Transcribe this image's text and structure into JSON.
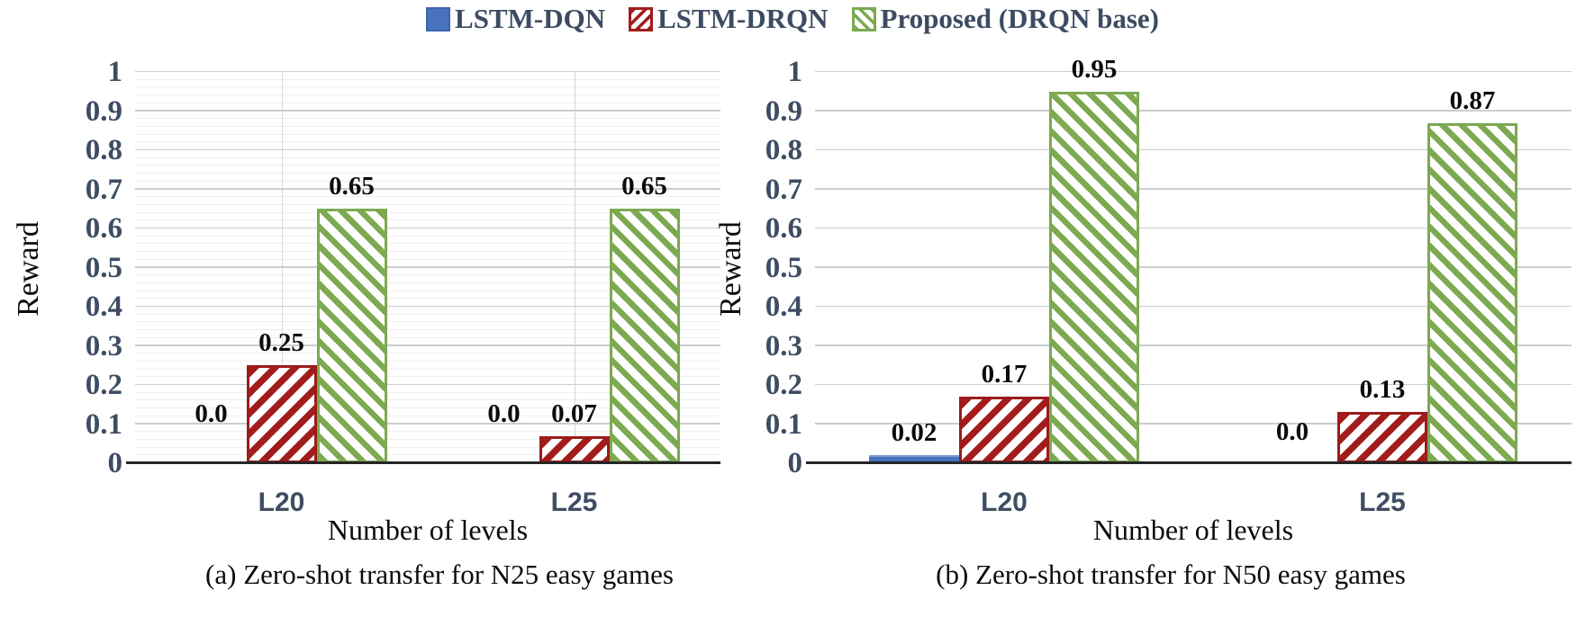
{
  "figure": {
    "legend": [
      {
        "label": "LSTM-DQN",
        "color": "#4a73bd",
        "pattern": "solid"
      },
      {
        "label": "LSTM-DRQN",
        "color": "#a31c1c",
        "pattern": "diag-up"
      },
      {
        "label": "Proposed (DRQN base)",
        "color": "#7da951",
        "pattern": "diag-down"
      }
    ],
    "text_color": "#3c4b62",
    "accent_blue": "#4a73bd",
    "accent_red": "#a31c1c",
    "accent_green": "#7da951"
  },
  "chart_data": [
    {
      "type": "bar",
      "title": "(a) Zero-shot transfer for N25 easy games",
      "xlabel": "Number of levels",
      "ylabel": "Reward",
      "categories": [
        "L20",
        "L25"
      ],
      "series": [
        {
          "name": "LSTM-DQN",
          "values": [
            0.0,
            0.0
          ],
          "labels": [
            "0.0",
            "0.0"
          ]
        },
        {
          "name": "LSTM-DRQN",
          "values": [
            0.25,
            0.07
          ],
          "labels": [
            "0.25",
            "0.07"
          ]
        },
        {
          "name": "Proposed (DRQN base)",
          "values": [
            0.65,
            0.65
          ],
          "labels": [
            "0.65",
            "0.65"
          ]
        }
      ],
      "ylim": [
        0,
        1
      ],
      "yticks": [
        "0",
        "0.1",
        "0.2",
        "0.3",
        "0.4",
        "0.5",
        "0.6",
        "0.7",
        "0.8",
        "0.9",
        "1"
      ],
      "grid": {
        "major": true,
        "minor": true,
        "vertical": true
      },
      "legend_position": "top",
      "zero_label_lift": 40
    },
    {
      "type": "bar",
      "title": "(b) Zero-shot transfer for N50 easy games",
      "xlabel": "Number of levels",
      "ylabel": "Reward",
      "categories": [
        "L20",
        "L25"
      ],
      "series": [
        {
          "name": "LSTM-DQN",
          "values": [
            0.02,
            0.0
          ],
          "labels": [
            "0.02",
            "0.0"
          ]
        },
        {
          "name": "LSTM-DRQN",
          "values": [
            0.17,
            0.13
          ],
          "labels": [
            "0.17",
            "0.13"
          ]
        },
        {
          "name": "Proposed (DRQN base)",
          "values": [
            0.95,
            0.87
          ],
          "labels": [
            "0.95",
            "0.87"
          ]
        }
      ],
      "ylim": [
        0,
        1
      ],
      "yticks": [
        "0",
        "0.1",
        "0.2",
        "0.3",
        "0.4",
        "0.5",
        "0.6",
        "0.7",
        "0.8",
        "0.9",
        "1"
      ],
      "grid": {
        "major": true,
        "minor": false,
        "vertical": false
      },
      "legend_position": "top",
      "zero_label_lift": 20
    }
  ]
}
